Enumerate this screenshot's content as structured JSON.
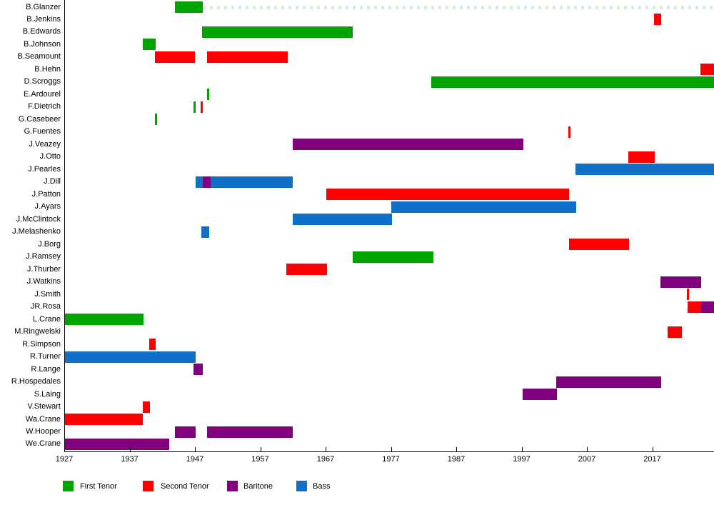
{
  "chart_data": {
    "type": "timeline",
    "title": "",
    "x_axis": {
      "min_year": 1927,
      "max_year": 2026.5,
      "tick_years": [
        1927,
        1937,
        1947,
        1957,
        1967,
        1977,
        1987,
        1997,
        2007,
        2017
      ],
      "axis_color": "#000000",
      "grid": false
    },
    "roles": {
      "ft": {
        "label": "First Tenor",
        "color": "#00A400"
      },
      "st": {
        "label": "Second Tenor",
        "color": "#FF0000"
      },
      "br": {
        "label": "Baritone",
        "color": "#800080"
      },
      "bs": {
        "label": "Bass",
        "color": "#1070C8"
      }
    },
    "legend": {
      "position": "bottom",
      "items": [
        {
          "role": "ft",
          "label": "First Tenor"
        },
        {
          "role": "st",
          "label": "Second Tenor"
        },
        {
          "role": "br",
          "label": "Baritone"
        },
        {
          "role": "bs",
          "label": "Bass"
        }
      ]
    },
    "rows": [
      {
        "name": "B.Glanzer",
        "segments": [
          {
            "role": "ft",
            "start": 1943.9,
            "end": 1948.2
          }
        ],
        "dash_from": 1948.2
      },
      {
        "name": "B.Jenkins",
        "segments": [
          {
            "role": "st",
            "start": 2017.3,
            "end": 2018.4
          }
        ]
      },
      {
        "name": "B.Edwards",
        "segments": [
          {
            "role": "ft",
            "start": 1948.1,
            "end": 1971.2
          }
        ]
      },
      {
        "name": "B.Johnson",
        "segments": [
          {
            "role": "ft",
            "start": 1939.0,
            "end": 1941.0
          }
        ]
      },
      {
        "name": "B.Seamount",
        "segments": [
          {
            "role": "st",
            "start": 1940.9,
            "end": 1947.0
          },
          {
            "role": "st",
            "start": 1948.9,
            "end": 1961.2
          }
        ]
      },
      {
        "name": "B.Hehn",
        "segments": [
          {
            "role": "st",
            "start": 2024.4,
            "end": 2026.6
          }
        ]
      },
      {
        "name": "D.Scroggs",
        "segments": [
          {
            "role": "ft",
            "start": 1983.2,
            "end": 2026.6
          }
        ]
      },
      {
        "name": "E.Ardourel",
        "segments": [
          {
            "role": "ft",
            "start": 1948.9,
            "end": 1949.2
          }
        ]
      },
      {
        "name": "F.Dietrich",
        "segments": [
          {
            "role": "ft",
            "start": 1946.8,
            "end": 1947.1
          },
          {
            "role": "st",
            "start": 1947.9,
            "end": 1948.2
          }
        ]
      },
      {
        "name": "G.Casebeer",
        "segments": [
          {
            "role": "ft",
            "start": 1940.9,
            "end": 1941.2
          }
        ]
      },
      {
        "name": "G.Fuentes",
        "segments": [
          {
            "role": "st",
            "start": 2004.2,
            "end": 2004.5
          }
        ]
      },
      {
        "name": "J.Veazey",
        "segments": [
          {
            "role": "br",
            "start": 1962.0,
            "end": 1997.3
          }
        ]
      },
      {
        "name": "J.Otto",
        "segments": [
          {
            "role": "st",
            "start": 2013.3,
            "end": 2017.4
          }
        ]
      },
      {
        "name": "J.Pearles",
        "segments": [
          {
            "role": "bs",
            "start": 2005.3,
            "end": 2026.6
          }
        ]
      },
      {
        "name": "J.Dill",
        "segments": [
          {
            "role": "bs",
            "start": 1947.1,
            "end": 1948.2
          },
          {
            "role": "br",
            "start": 1948.2,
            "end": 1949.4
          },
          {
            "role": "bs",
            "start": 1949.4,
            "end": 1962.0
          }
        ]
      },
      {
        "name": "J.Patton",
        "segments": [
          {
            "role": "st",
            "start": 1967.1,
            "end": 2004.3
          }
        ]
      },
      {
        "name": "J.Ayars",
        "segments": [
          {
            "role": "bs",
            "start": 1977.1,
            "end": 2005.4
          }
        ]
      },
      {
        "name": "J.McClintock",
        "segments": [
          {
            "role": "bs",
            "start": 1962.0,
            "end": 1977.2
          }
        ]
      },
      {
        "name": "J.Melashenko",
        "segments": [
          {
            "role": "bs",
            "start": 1948.0,
            "end": 1949.2
          }
        ]
      },
      {
        "name": "J.Borg",
        "segments": [
          {
            "role": "st",
            "start": 2004.3,
            "end": 2013.5
          }
        ]
      },
      {
        "name": "J.Ramsey",
        "segments": [
          {
            "role": "ft",
            "start": 1971.1,
            "end": 1983.5
          }
        ]
      },
      {
        "name": "J.Thurber",
        "segments": [
          {
            "role": "st",
            "start": 1961.0,
            "end": 1967.2
          }
        ]
      },
      {
        "name": "J.Watkins",
        "segments": [
          {
            "role": "br",
            "start": 2018.3,
            "end": 2024.5
          }
        ]
      },
      {
        "name": "J.Smith",
        "segments": [
          {
            "role": "st",
            "start": 2022.3,
            "end": 2022.6
          }
        ]
      },
      {
        "name": "JR.Rosa",
        "segments": [
          {
            "role": "st",
            "start": 2022.4,
            "end": 2024.5
          },
          {
            "role": "br",
            "start": 2024.5,
            "end": 2026.6
          }
        ]
      },
      {
        "name": "L.Crane",
        "segments": [
          {
            "role": "ft",
            "start": 1927.0,
            "end": 1939.1
          }
        ]
      },
      {
        "name": "M.Ringwelski",
        "segments": [
          {
            "role": "st",
            "start": 2019.4,
            "end": 2021.5
          }
        ]
      },
      {
        "name": "R.Simpson",
        "segments": [
          {
            "role": "st",
            "start": 1940.0,
            "end": 1941.0
          }
        ]
      },
      {
        "name": "R.Turner",
        "segments": [
          {
            "role": "bs",
            "start": 1927.0,
            "end": 1947.1
          }
        ]
      },
      {
        "name": "R.Lange",
        "segments": [
          {
            "role": "br",
            "start": 1946.8,
            "end": 1948.2
          }
        ]
      },
      {
        "name": "R.Hospedales",
        "segments": [
          {
            "role": "br",
            "start": 2002.3,
            "end": 2018.4
          }
        ]
      },
      {
        "name": "S.Laing",
        "segments": [
          {
            "role": "br",
            "start": 1997.2,
            "end": 2002.4
          }
        ]
      },
      {
        "name": "V.Stewart",
        "segments": [
          {
            "role": "st",
            "start": 1939.0,
            "end": 1940.1
          }
        ]
      },
      {
        "name": "Wa.Crane",
        "segments": [
          {
            "role": "st",
            "start": 1927.0,
            "end": 1939.0
          }
        ]
      },
      {
        "name": "W.Hooper",
        "segments": [
          {
            "role": "br",
            "start": 1943.9,
            "end": 1947.1
          },
          {
            "role": "br",
            "start": 1948.9,
            "end": 1962.0
          }
        ]
      },
      {
        "name": "We.Crane",
        "segments": [
          {
            "role": "br",
            "start": 1927.0,
            "end": 1943.1
          }
        ]
      }
    ]
  }
}
